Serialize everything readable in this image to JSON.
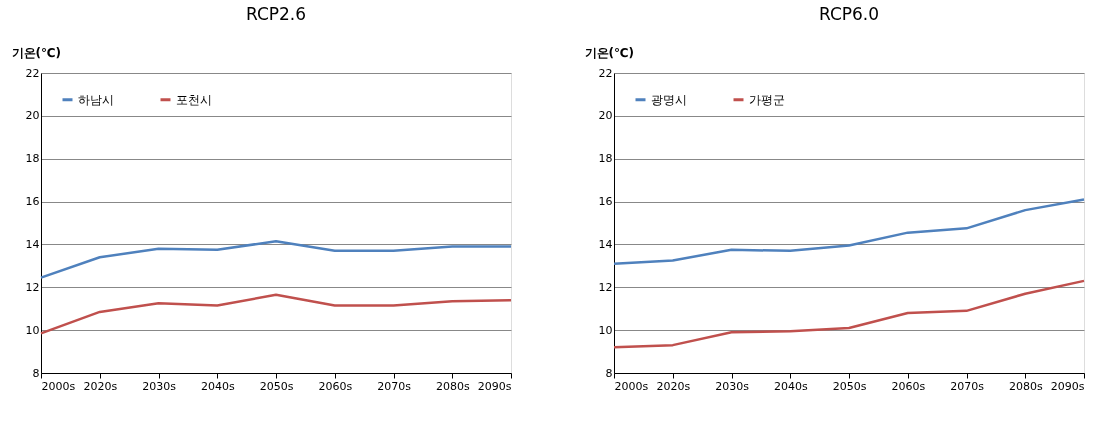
{
  "chart_data": [
    {
      "type": "line",
      "title": "RCP2.6",
      "ylabel": "기온(℃)",
      "categories": [
        "2000s",
        "2020s",
        "2030s",
        "2040s",
        "2050s",
        "2060s",
        "2070s",
        "2080s",
        "2090s"
      ],
      "ylim": [
        8,
        22
      ],
      "yticks": [
        8,
        10,
        12,
        14,
        16,
        18,
        20,
        22
      ],
      "grid": "y",
      "legend": "top left",
      "marker": "none",
      "series": [
        {
          "name": "하남시",
          "color": "#4f81bd",
          "values": [
            12.45,
            13.4,
            13.8,
            13.75,
            14.15,
            13.7,
            13.7,
            13.9,
            13.9
          ]
        },
        {
          "name": "포천시",
          "color": "#c0504d",
          "values": [
            9.85,
            10.85,
            11.25,
            11.15,
            11.65,
            11.15,
            11.15,
            11.35,
            11.4
          ]
        }
      ]
    },
    {
      "type": "line",
      "title": "RCP6.0",
      "ylabel": "기온(℃)",
      "categories": [
        "2000s",
        "2020s",
        "2030s",
        "2040s",
        "2050s",
        "2060s",
        "2070s",
        "2080s",
        "2090s"
      ],
      "ylim": [
        8,
        22
      ],
      "yticks": [
        8,
        10,
        12,
        14,
        16,
        18,
        20,
        22
      ],
      "grid": "y",
      "legend": "top left",
      "marker": "none",
      "series": [
        {
          "name": "광명시",
          "color": "#4f81bd",
          "values": [
            13.1,
            13.25,
            13.75,
            13.7,
            13.95,
            14.55,
            14.75,
            15.6,
            16.1
          ]
        },
        {
          "name": "가평군",
          "color": "#c0504d",
          "values": [
            9.2,
            9.3,
            9.9,
            9.95,
            10.1,
            10.8,
            10.9,
            11.7,
            12.3
          ]
        }
      ]
    }
  ]
}
